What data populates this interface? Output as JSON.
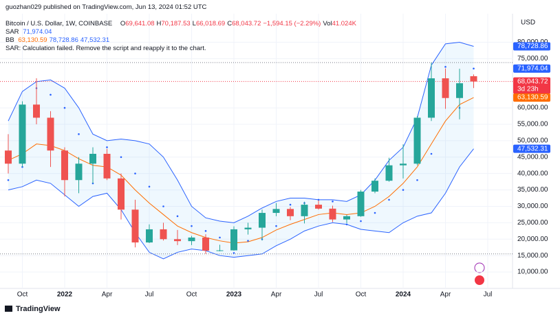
{
  "source": "guozhan029 published on TradingView.com, Jun 13, 2024 01:52 UTC",
  "legend": {
    "symbol": "Bitcoin / U.S. Dollar, 1W, COINBASE",
    "ohlc": [
      {
        "label": "O",
        "value": "69,641.08"
      },
      {
        "label": "H",
        "value": "70,187.53"
      },
      {
        "label": "L",
        "value": "66,018.69"
      },
      {
        "label": "C",
        "value": "68,043.72"
      }
    ],
    "change": "−1,594.15 (−2.29%)",
    "vol_label": "Vol",
    "vol": "41.024K",
    "sar_label": "SAR",
    "sar_values": [
      "71,974.04"
    ],
    "bb_label": "BB",
    "bb_values": [
      "63,130.59",
      "78,728.86",
      "47,532.31"
    ],
    "error": "SAR: Calculation failed. Remove the script and reapply it to the chart."
  },
  "brand": "TradingView",
  "chart_data": {
    "type": "candlestick",
    "currency": "USD",
    "categories": [
      null,
      "Oct",
      null,
      null,
      "2022",
      null,
      null,
      "Apr",
      null,
      null,
      "Jul",
      null,
      null,
      "Oct",
      null,
      null,
      "2023",
      null,
      null,
      "Apr",
      null,
      null,
      "Jul",
      null,
      null,
      "Oct",
      null,
      null,
      "2024",
      null,
      null,
      "Apr",
      null,
      null,
      "Jul"
    ],
    "open": [
      47000,
      43000,
      61000,
      57000,
      47000,
      38000,
      43000,
      46000,
      38500,
      29000,
      19000,
      23000,
      20000,
      19400,
      20500,
      16500,
      16600,
      23000,
      23500,
      28000,
      29200,
      27000,
      30500,
      29300,
      26000,
      27000,
      34500,
      37800,
      42500,
      43000,
      57000,
      69000,
      63000,
      69641.08,
      null
    ],
    "high": [
      52000,
      62000,
      69000,
      59000,
      48000,
      45000,
      48000,
      47500,
      40000,
      32000,
      24500,
      25000,
      22800,
      21000,
      21500,
      18300,
      23900,
      25000,
      29000,
      31000,
      29800,
      31400,
      31800,
      30200,
      27400,
      35000,
      38500,
      44800,
      48900,
      57500,
      73800,
      72000,
      71900,
      70187.53,
      null
    ],
    "low": [
      40000,
      42000,
      55000,
      42000,
      33000,
      34000,
      37000,
      38000,
      26000,
      17500,
      18800,
      19600,
      18200,
      18200,
      15500,
      16300,
      16500,
      21400,
      19600,
      27000,
      25800,
      24800,
      29000,
      25200,
      24900,
      26800,
      34000,
      37500,
      38500,
      42500,
      56000,
      59700,
      56500,
      66018.69,
      null
    ],
    "close": [
      43000,
      61000,
      57000,
      47000,
      38000,
      43000,
      46000,
      38500,
      29000,
      19000,
      23000,
      20000,
      19400,
      20500,
      16500,
      16600,
      23000,
      23500,
      28000,
      29200,
      27000,
      30500,
      29300,
      26000,
      27000,
      34500,
      37800,
      42500,
      43000,
      57000,
      69000,
      63000,
      67500,
      68043.72,
      null
    ],
    "up_color": "#26a69a",
    "down_color": "#ef5350",
    "bb": {
      "upper": [
        56000,
        65000,
        68000,
        68500,
        66000,
        60000,
        52000,
        50000,
        50500,
        50000,
        49000,
        45000,
        38000,
        30000,
        26500,
        25500,
        25000,
        27000,
        29500,
        31500,
        32500,
        32500,
        32000,
        32000,
        31500,
        33500,
        38000,
        44000,
        48000,
        57000,
        73000,
        79500,
        80000,
        78728.86,
        null
      ],
      "basis": [
        44000,
        46000,
        49000,
        48500,
        47000,
        44500,
        42500,
        42000,
        39500,
        35000,
        31000,
        27500,
        24000,
        22000,
        20500,
        19500,
        18800,
        19200,
        20500,
        22800,
        24500,
        26000,
        27500,
        28000,
        27500,
        28000,
        30000,
        33000,
        37000,
        42000,
        49000,
        56000,
        61000,
        63130.59,
        null
      ],
      "lower": [
        35000,
        36000,
        38000,
        37000,
        33500,
        30000,
        33000,
        34000,
        29000,
        22000,
        16000,
        14000,
        16000,
        17000,
        16500,
        15000,
        14500,
        15000,
        15500,
        18000,
        20000,
        22500,
        24000,
        25000,
        24500,
        23000,
        22500,
        22000,
        25000,
        27000,
        28000,
        34000,
        42000,
        47532.31,
        null
      ],
      "band_color": "#2962ff",
      "basis_color": "#ff6d00",
      "fill": "rgba(33,150,243,0.07)"
    },
    "sar": {
      "values": [
        38000,
        42000,
        66000,
        64000,
        60000,
        52000,
        37000,
        48000,
        45000,
        40000,
        36000,
        30000,
        27000,
        24000,
        22500,
        20500,
        15800,
        19500,
        20000,
        24000,
        30500,
        31000,
        32000,
        31500,
        24500,
        25500,
        28000,
        32000,
        35000,
        38000,
        46000,
        72500,
        60000,
        71974.04,
        null
      ],
      "color": "#2962ff"
    },
    "price_line": 68043.72,
    "levels": [
      73800,
      15500
    ],
    "price_tags": [
      {
        "value": 78728.86,
        "label": "78,728.86",
        "color": "#2962ff"
      },
      {
        "value": 71974.04,
        "label": "71,974.04",
        "color": "#2962ff"
      },
      {
        "value": 68043.72,
        "label": "68,043.72",
        "sub": "3d 23h",
        "color": "#f23645"
      },
      {
        "value": 63130.59,
        "label": "63,130.59",
        "color": "#ff6d00"
      },
      {
        "value": 47532.31,
        "label": "47,532.31",
        "color": "#2962ff"
      }
    ],
    "ylim": [
      5000,
      87000
    ],
    "yticks": [
      {
        "value": 10000,
        "label": "10,000.00"
      },
      {
        "value": 15000,
        "label": "15,000.00"
      },
      {
        "value": 20000,
        "label": "20,000.00"
      },
      {
        "value": 25000,
        "label": "25,000.00"
      },
      {
        "value": 30000,
        "label": "30,000.00"
      },
      {
        "value": 35000,
        "label": "35,000.00"
      },
      {
        "value": 40000,
        "label": "40,000.00"
      },
      {
        "value": 45000,
        "label": "45,000.00"
      },
      {
        "value": 50000,
        "label": "50,000.00"
      },
      {
        "value": 55000,
        "label": "55,000.00"
      },
      {
        "value": 60000,
        "label": "60,000.00"
      },
      {
        "value": 75000,
        "label": "75,000.00"
      },
      {
        "value": 80000,
        "label": "80,000.00"
      }
    ]
  }
}
